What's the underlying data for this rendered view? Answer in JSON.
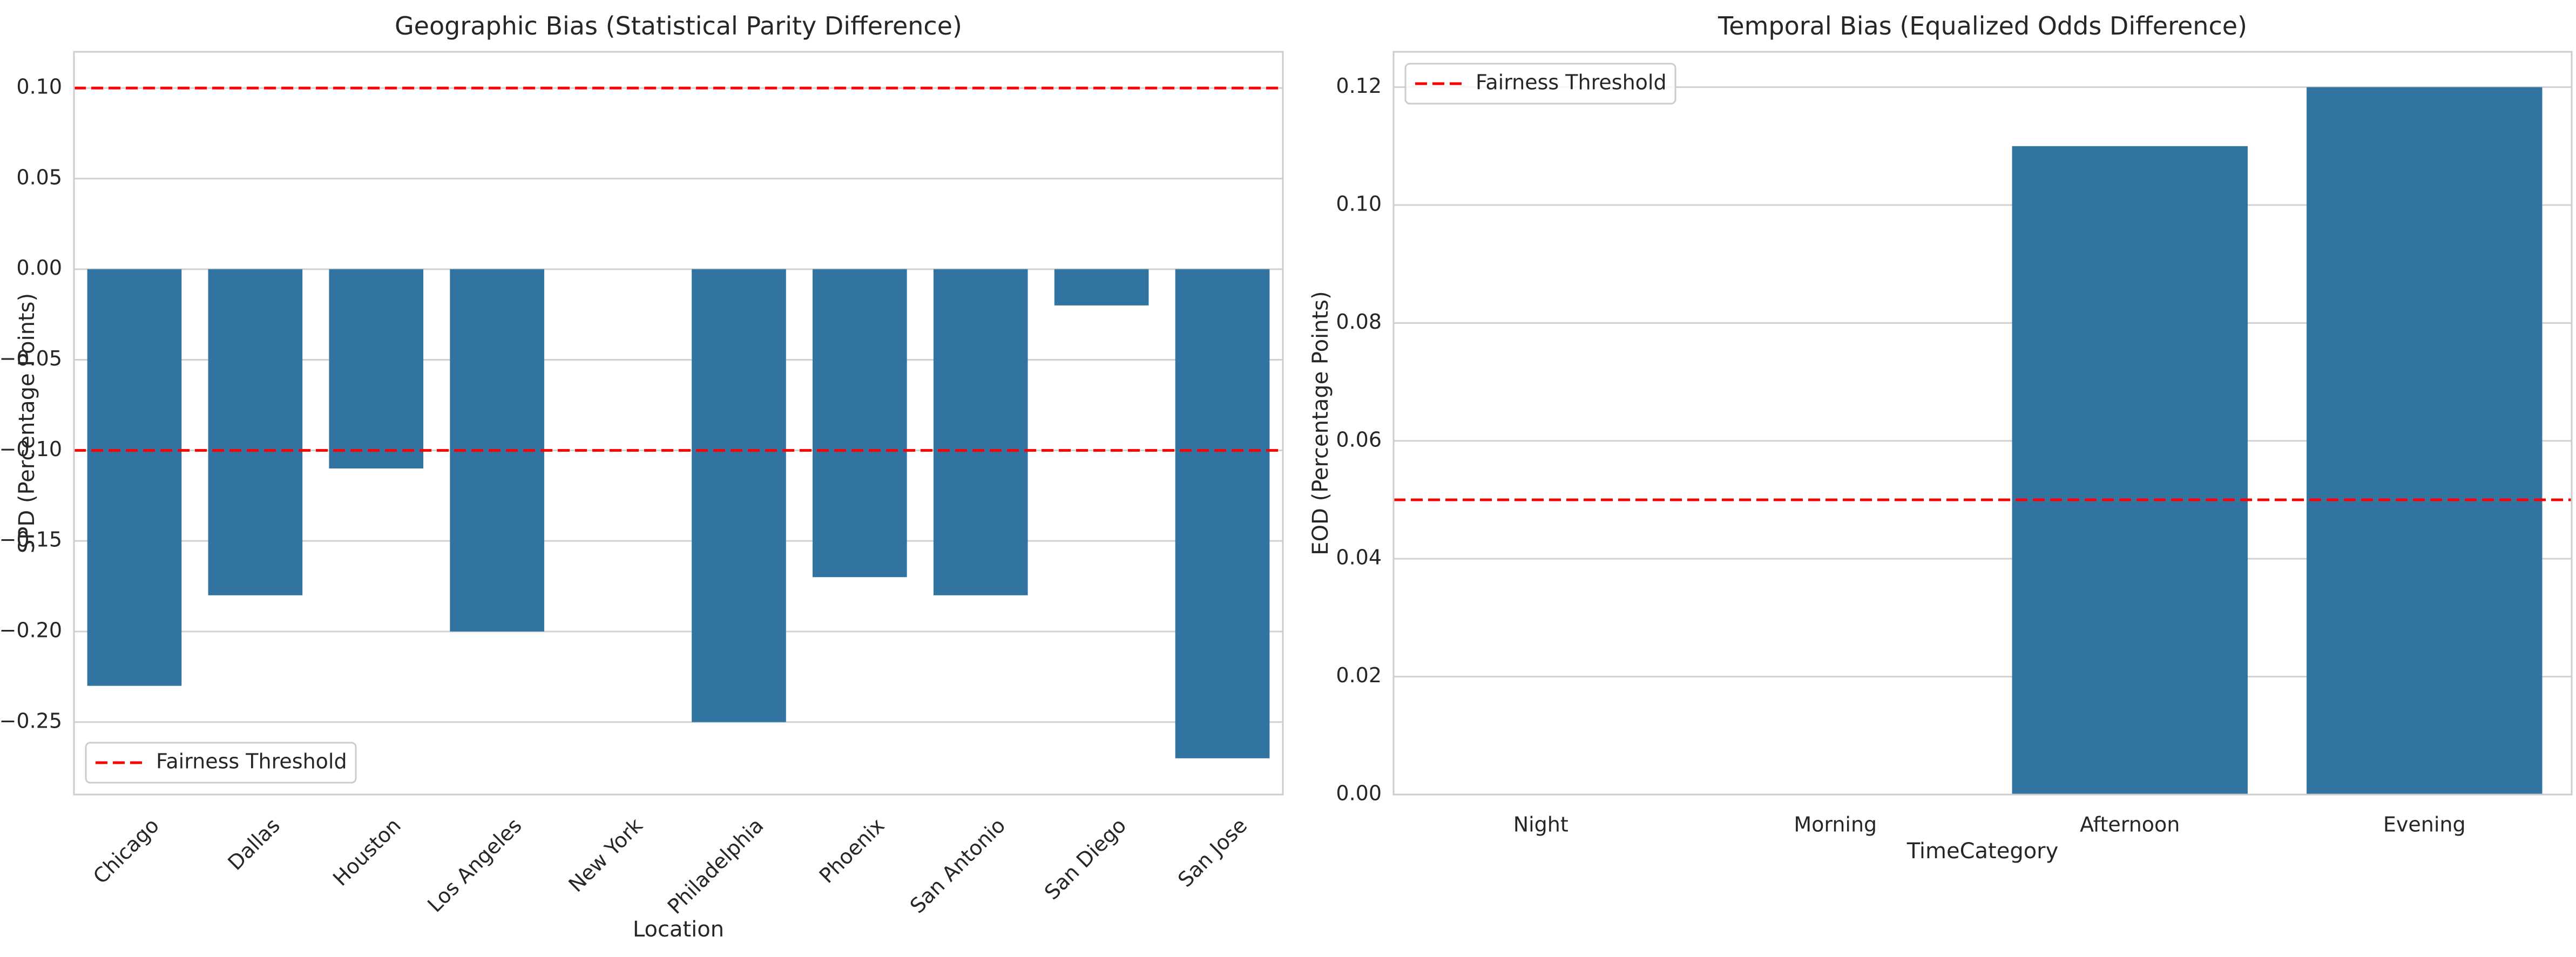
{
  "chart_data": [
    {
      "type": "bar",
      "title": "Geographic Bias (Statistical Parity Difference)",
      "xlabel": "Location",
      "ylabel": "SPD (Percentage Points)",
      "categories": [
        "Chicago",
        "Dallas",
        "Houston",
        "Los Angeles",
        "New York",
        "Philadelphia",
        "Phoenix",
        "San Antonio",
        "San Diego",
        "San Jose"
      ],
      "values": [
        -0.23,
        -0.18,
        -0.11,
        -0.2,
        0.0,
        -0.25,
        -0.17,
        -0.18,
        -0.02,
        -0.27
      ],
      "ylim": [
        -0.29,
        0.12
      ],
      "yticks": [
        0.1,
        0.05,
        0.0,
        -0.05,
        -0.1,
        -0.15,
        -0.2,
        -0.25
      ],
      "ytick_labels": [
        "0.10",
        "0.05",
        "0.00",
        "−0.05",
        "−0.10",
        "−0.15",
        "−0.20",
        "−0.25"
      ],
      "thresholds": [
        0.1,
        -0.1
      ],
      "legend": {
        "label": "Fairness Threshold",
        "position": "lower-left"
      },
      "grid": true,
      "xtick_rotation": 45,
      "bar_color": "#3274a1",
      "threshold_color": "#ff0000"
    },
    {
      "type": "bar",
      "title": "Temporal Bias (Equalized Odds Difference)",
      "xlabel": "TimeCategory",
      "ylabel": "EOD (Percentage Points)",
      "categories": [
        "Night",
        "Morning",
        "Afternoon",
        "Evening"
      ],
      "values": [
        0.0,
        0.0,
        0.11,
        0.12
      ],
      "ylim": [
        0.0,
        0.126
      ],
      "yticks": [
        0.0,
        0.02,
        0.04,
        0.06,
        0.08,
        0.1,
        0.12
      ],
      "ytick_labels": [
        "0.00",
        "0.02",
        "0.04",
        "0.06",
        "0.08",
        "0.10",
        "0.12"
      ],
      "thresholds": [
        0.05
      ],
      "legend": {
        "label": "Fairness Threshold",
        "position": "upper-left"
      },
      "grid": true,
      "xtick_rotation": 0,
      "bar_color": "#3274a1",
      "threshold_color": "#ff0000"
    }
  ]
}
